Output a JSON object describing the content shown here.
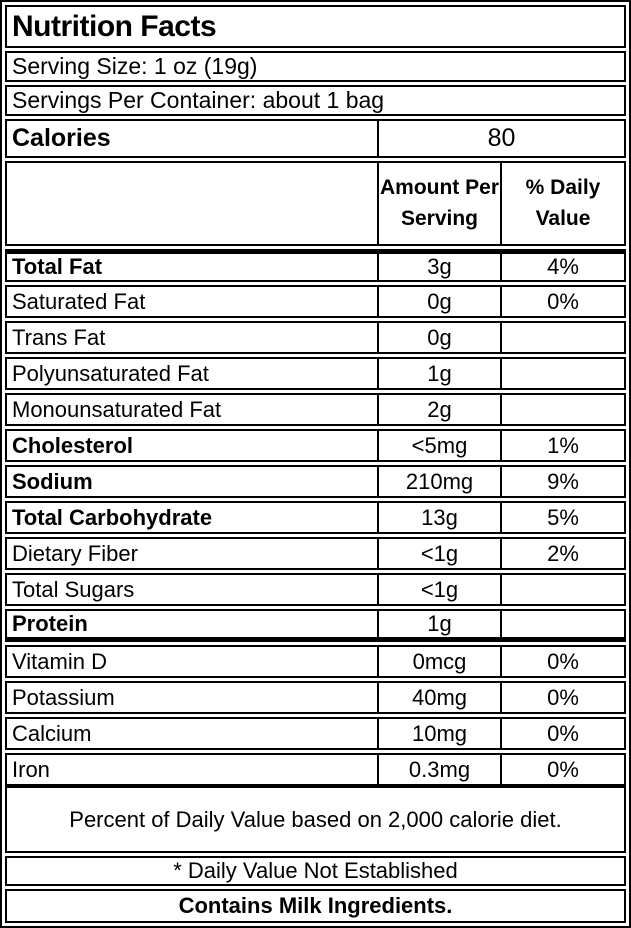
{
  "label": {
    "title": "Nutrition Facts",
    "serving_size": "Serving Size: 1 oz (19g)",
    "servings_per_container": "Servings Per Container: about 1 bag",
    "calories_label": "Calories",
    "calories_value": "80",
    "col_amount_header": "Amount Per Serving",
    "col_dv_header": "% Daily Value",
    "rows": [
      {
        "name": "Total Fat",
        "amount": "3g",
        "dv": "4%",
        "bold": true,
        "thick_top": true
      },
      {
        "name": "Saturated Fat",
        "amount": "0g",
        "dv": "0%",
        "bold": false
      },
      {
        "name": "Trans Fat",
        "amount": "0g",
        "dv": "",
        "bold": false
      },
      {
        "name": "Polyunsaturated Fat",
        "amount": "1g",
        "dv": "",
        "bold": false
      },
      {
        "name": "Monounsaturated Fat",
        "amount": "2g",
        "dv": "",
        "bold": false
      },
      {
        "name": "Cholesterol",
        "amount": "<5mg",
        "dv": "1%",
        "bold": true
      },
      {
        "name": "Sodium",
        "amount": "210mg",
        "dv": "9%",
        "bold": true
      },
      {
        "name": "Total Carbohydrate",
        "amount": "13g",
        "dv": "5%",
        "bold": true
      },
      {
        "name": "Dietary Fiber",
        "amount": "<1g",
        "dv": "2%",
        "bold": false
      },
      {
        "name": "Total Sugars",
        "amount": "<1g",
        "dv": "",
        "bold": false
      },
      {
        "name": "Protein",
        "amount": "1g",
        "dv": "",
        "bold": true,
        "thick_bottom": true
      },
      {
        "name": "Vitamin D",
        "amount": "0mcg",
        "dv": "0%",
        "bold": false
      },
      {
        "name": "Potassium",
        "amount": "40mg",
        "dv": "0%",
        "bold": false
      },
      {
        "name": "Calcium",
        "amount": "10mg",
        "dv": "0%",
        "bold": false
      },
      {
        "name": "Iron",
        "amount": "0.3mg",
        "dv": "0%",
        "bold": false
      }
    ],
    "footnote": "Percent of Daily Value based on 2,000 calorie diet.",
    "dv_note": "* Daily Value Not Established",
    "allergen": "Contains Milk Ingredients.",
    "colors": {
      "border": "#000000",
      "background": "#ffffff",
      "text": "#000000"
    }
  }
}
